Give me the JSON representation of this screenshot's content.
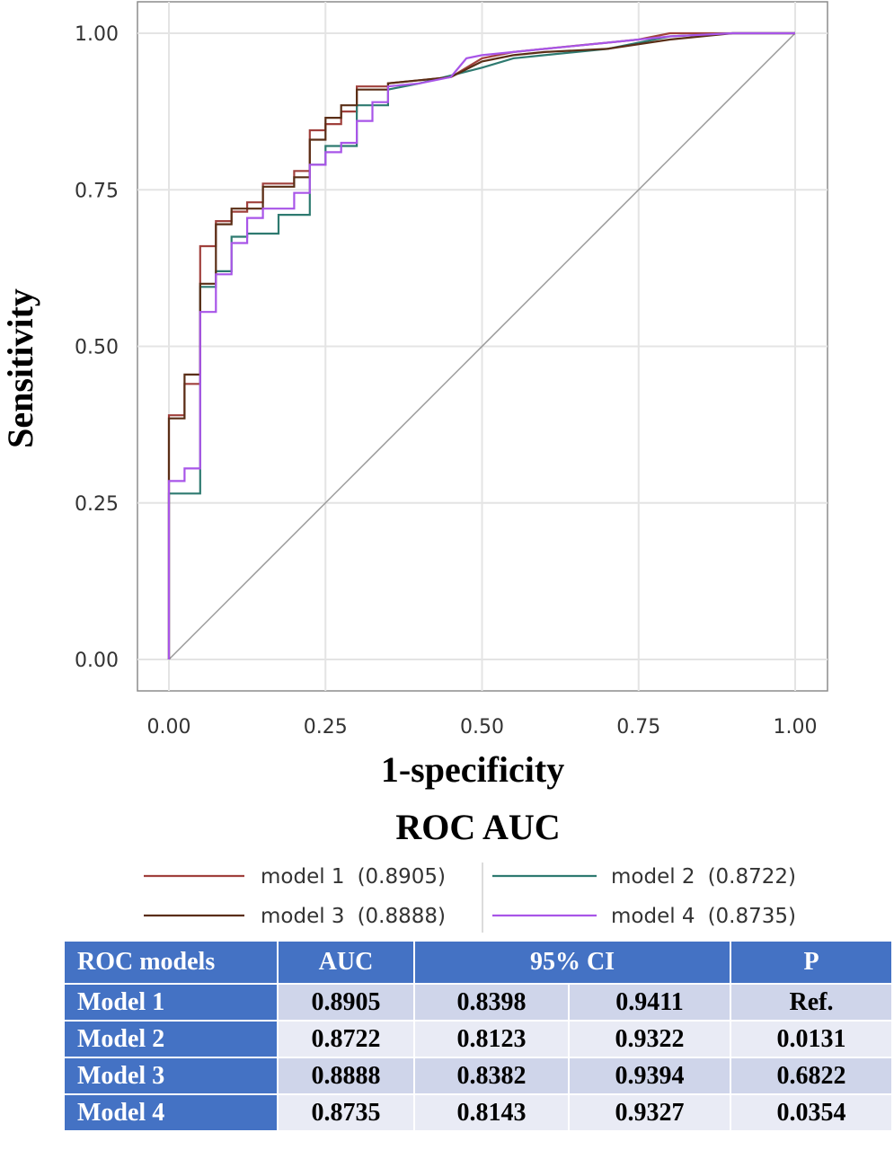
{
  "chart_data": {
    "type": "line",
    "xlabel": "1-specificity",
    "ylabel": "Sensitivity",
    "xlim": [
      0,
      1
    ],
    "ylim": [
      0,
      1
    ],
    "xticks": [
      "0.00",
      "0.25",
      "0.50",
      "0.75",
      "1.00"
    ],
    "yticks": [
      "0.00",
      "0.25",
      "0.50",
      "0.75",
      "1.00"
    ],
    "grid": true,
    "legend_title": "ROC AUC",
    "legend_position": "bottom",
    "reference_line": {
      "x": [
        0,
        1
      ],
      "y": [
        0,
        1
      ],
      "color": "#999999"
    },
    "series": [
      {
        "name": "model 1",
        "legend_label": "model 1",
        "auc_label": "(0.8905)",
        "color": "#a0403c",
        "x": [
          0,
          0,
          0.025,
          0.025,
          0.04,
          0.04,
          0.05,
          0.05,
          0.075,
          0.075,
          0.1,
          0.1,
          0.125,
          0.125,
          0.15,
          0.15,
          0.2,
          0.2,
          0.225,
          0.225,
          0.25,
          0.25,
          0.275,
          0.275,
          0.3,
          0.3,
          0.35,
          0.35,
          0.4,
          0.45,
          0.475,
          0.5,
          0.55,
          0.6,
          0.65,
          0.7,
          0.75,
          0.8,
          0.9,
          1
        ],
        "y": [
          0,
          0.39,
          0.39,
          0.44,
          0.44,
          0.44,
          0.44,
          0.66,
          0.66,
          0.7,
          0.7,
          0.715,
          0.715,
          0.73,
          0.73,
          0.76,
          0.76,
          0.78,
          0.78,
          0.845,
          0.845,
          0.855,
          0.855,
          0.875,
          0.875,
          0.915,
          0.915,
          0.92,
          0.925,
          0.93,
          0.945,
          0.96,
          0.97,
          0.975,
          0.98,
          0.985,
          0.99,
          1,
          1,
          1
        ]
      },
      {
        "name": "model 2",
        "legend_label": "model 2",
        "auc_label": "(0.8722)",
        "color": "#2e7a70",
        "x": [
          0,
          0,
          0.05,
          0.05,
          0.075,
          0.075,
          0.1,
          0.1,
          0.125,
          0.125,
          0.175,
          0.175,
          0.225,
          0.225,
          0.25,
          0.25,
          0.3,
          0.3,
          0.35,
          0.35,
          0.4,
          0.5,
          0.55,
          0.6,
          0.7,
          0.75,
          0.8,
          0.9,
          1
        ],
        "y": [
          0,
          0.265,
          0.265,
          0.595,
          0.595,
          0.62,
          0.62,
          0.675,
          0.675,
          0.68,
          0.68,
          0.71,
          0.71,
          0.79,
          0.79,
          0.82,
          0.82,
          0.885,
          0.885,
          0.91,
          0.92,
          0.945,
          0.96,
          0.965,
          0.975,
          0.985,
          0.995,
          1,
          1
        ]
      },
      {
        "name": "model 3",
        "legend_label": "model 3",
        "auc_label": "(0.8888)",
        "color": "#5a2e16",
        "x": [
          0,
          0,
          0.025,
          0.025,
          0.05,
          0.05,
          0.075,
          0.075,
          0.1,
          0.1,
          0.15,
          0.15,
          0.2,
          0.2,
          0.225,
          0.225,
          0.25,
          0.25,
          0.275,
          0.275,
          0.3,
          0.3,
          0.35,
          0.35,
          0.4,
          0.45,
          0.5,
          0.55,
          0.6,
          0.7,
          0.8,
          0.9,
          1
        ],
        "y": [
          0,
          0.385,
          0.385,
          0.455,
          0.455,
          0.6,
          0.6,
          0.695,
          0.695,
          0.72,
          0.72,
          0.755,
          0.755,
          0.77,
          0.77,
          0.83,
          0.83,
          0.865,
          0.865,
          0.885,
          0.885,
          0.91,
          0.91,
          0.92,
          0.925,
          0.93,
          0.955,
          0.965,
          0.97,
          0.975,
          0.99,
          1,
          1
        ]
      },
      {
        "name": "model 4",
        "legend_label": "model 4",
        "auc_label": "(0.8735)",
        "color": "#a855e8",
        "x": [
          0,
          0,
          0.025,
          0.025,
          0.05,
          0.05,
          0.075,
          0.075,
          0.1,
          0.1,
          0.125,
          0.125,
          0.15,
          0.15,
          0.2,
          0.2,
          0.225,
          0.225,
          0.25,
          0.25,
          0.275,
          0.275,
          0.3,
          0.3,
          0.325,
          0.325,
          0.35,
          0.35,
          0.4,
          0.45,
          0.475,
          0.5,
          0.55,
          0.6,
          0.7,
          0.8,
          0.9,
          1
        ],
        "y": [
          0,
          0.285,
          0.285,
          0.305,
          0.305,
          0.555,
          0.555,
          0.615,
          0.615,
          0.665,
          0.665,
          0.705,
          0.705,
          0.72,
          0.72,
          0.745,
          0.745,
          0.79,
          0.79,
          0.81,
          0.81,
          0.825,
          0.825,
          0.86,
          0.86,
          0.89,
          0.89,
          0.915,
          0.92,
          0.93,
          0.96,
          0.965,
          0.97,
          0.975,
          0.985,
          0.995,
          1,
          1
        ]
      }
    ]
  },
  "table": {
    "headers": {
      "model": "ROC models",
      "auc": "AUC",
      "ci": "95% CI",
      "p": "P"
    },
    "rows": [
      {
        "model": "Model 1",
        "auc": "0.8905",
        "ci_low": "0.8398",
        "ci_high": "0.9411",
        "p": "Ref."
      },
      {
        "model": "Model 2",
        "auc": "0.8722",
        "ci_low": "0.8123",
        "ci_high": "0.9322",
        "p": "0.0131"
      },
      {
        "model": "Model 3",
        "auc": "0.8888",
        "ci_low": "0.8382",
        "ci_high": "0.9394",
        "p": "0.6822"
      },
      {
        "model": "Model 4",
        "auc": "0.8735",
        "ci_low": "0.8143",
        "ci_high": "0.9327",
        "p": "0.0354"
      }
    ]
  }
}
